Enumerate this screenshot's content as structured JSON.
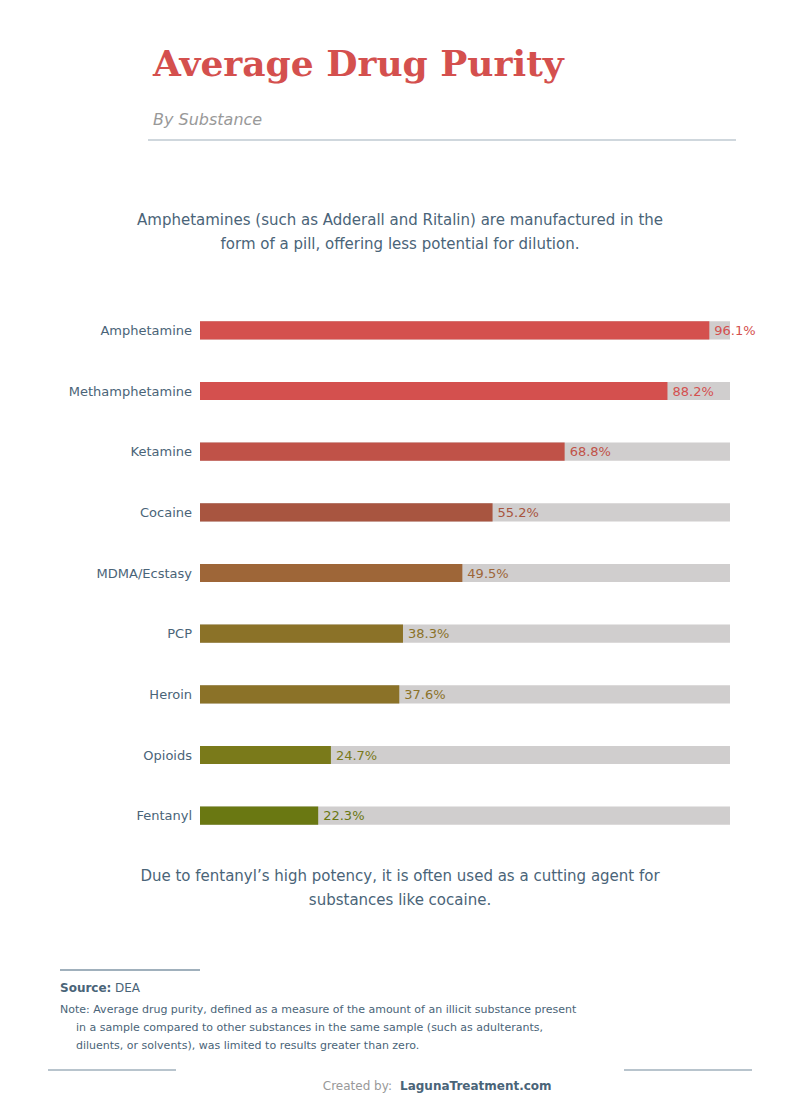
{
  "chart_data": {
    "type": "bar",
    "title": "Average Drug Purity",
    "subtitle": "By Substance",
    "categories": [
      "Amphetamine",
      "Methamphetamine",
      "Ketamine",
      "Cocaine",
      "MDMA/Ecstasy",
      "PCP",
      "Heroin",
      "Opioids",
      "Fentanyl"
    ],
    "values": [
      96.1,
      88.2,
      68.8,
      55.2,
      49.5,
      38.3,
      37.6,
      24.7,
      22.3
    ],
    "value_labels": [
      "96.1%",
      "88.2%",
      "68.8%",
      "55.2%",
      "49.5%",
      "38.3%",
      "37.6%",
      "24.7%",
      "22.3%"
    ],
    "colors": [
      "#d4504e",
      "#d4504e",
      "#c05248",
      "#a85540",
      "#9e6638",
      "#8b7228",
      "#8b7228",
      "#7a7a1a",
      "#6a7812"
    ],
    "orientation": "horizontal",
    "data_labels": true,
    "tick_labels": "y",
    "grid": false,
    "xlim": [
      0,
      100
    ],
    "annotations": [
      "Amphetamines (such as Adderall and Ritalin) are manufactured in the",
      "form of a pill, offering less potential for dilution.",
      "Due to fentanyl’s high potency, it is often used as a cutting agent for",
      "substances like cocaine.",
      "Source:",
      "DEA",
      "Note: Average drug purity, defined as a measure of the amount of an illicit substance present",
      "in a sample compared to other substances in the same sample (such as adulterants,",
      "diluents, or solvents), was limited to results greater than zero.",
      "Created by:",
      "LagunaTreatment.com"
    ]
  }
}
